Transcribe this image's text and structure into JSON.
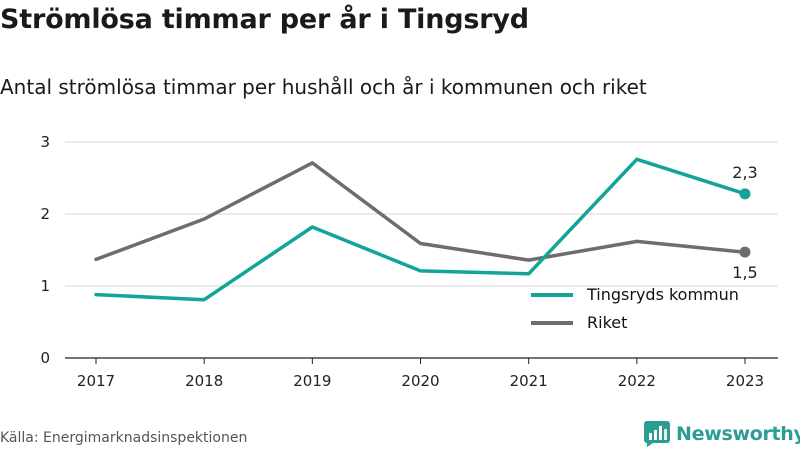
{
  "header": {
    "title": "Strömlösa timmar per år i Tingsryd",
    "subtitle": "Antal strömlösa timmar per hushåll och år i kommunen och riket"
  },
  "footer": {
    "source": "Källa: Energimarknadsinspektionen",
    "brand": "Newsworthy"
  },
  "colors": {
    "tingsryd": "#14a39a",
    "riket": "#6e6c73",
    "grid": "#d9d9d9",
    "axis": "#222222"
  },
  "chart_data": {
    "type": "line",
    "x": [
      "2017",
      "2018",
      "2019",
      "2020",
      "2021",
      "2022",
      "2023"
    ],
    "ylim": [
      0,
      3
    ],
    "yticks": [
      "0",
      "1",
      "2",
      "3"
    ],
    "grid": true,
    "legend_position": "bottom-right",
    "series": [
      {
        "name": "Tingsryds kommun",
        "values": [
          0.88,
          0.81,
          1.82,
          1.21,
          1.17,
          2.76,
          2.28
        ],
        "end_label": "2,3"
      },
      {
        "name": "Riket",
        "values": [
          1.37,
          1.93,
          2.71,
          1.59,
          1.36,
          1.62,
          1.47
        ],
        "end_label": "1,5"
      }
    ]
  }
}
